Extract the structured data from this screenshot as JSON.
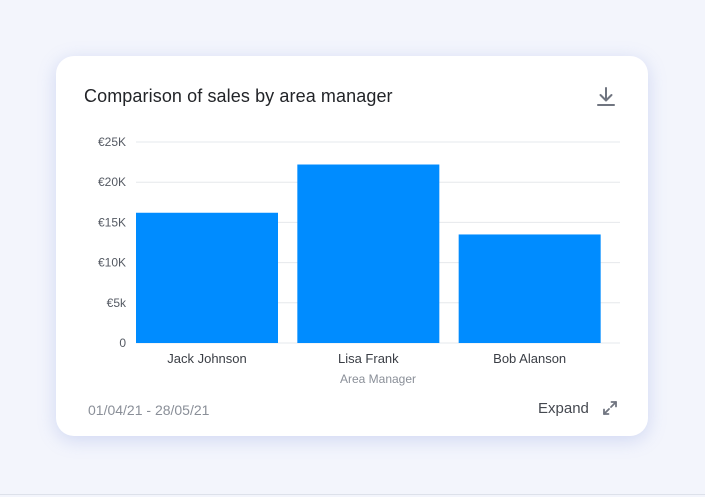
{
  "card": {
    "title": "Comparison of sales by area manager",
    "date_range": "01/04/21 - 28/05/21",
    "expand_label": "Expand"
  },
  "icons": {
    "download": "download-icon",
    "expand": "expand-icon"
  },
  "colors": {
    "bar": "#008cff",
    "grid": "#e6e8ec",
    "background": "#f3f5fc"
  },
  "chart_data": {
    "type": "bar",
    "categories": [
      "Jack Johnson",
      "Lisa Frank",
      "Bob Alanson"
    ],
    "values": [
      16200,
      22200,
      13500
    ],
    "title": "Comparison of sales by area manager",
    "xlabel": "Area Manager",
    "ylabel": "",
    "ylim": [
      0,
      25000
    ],
    "yticks": [
      {
        "value": 0,
        "label": "0"
      },
      {
        "value": 5000,
        "label": "€5k"
      },
      {
        "value": 10000,
        "label": "€10K"
      },
      {
        "value": 15000,
        "label": "€15K"
      },
      {
        "value": 20000,
        "label": "€20K"
      },
      {
        "value": 25000,
        "label": "€25K"
      }
    ],
    "grid": true,
    "legend": "none"
  }
}
